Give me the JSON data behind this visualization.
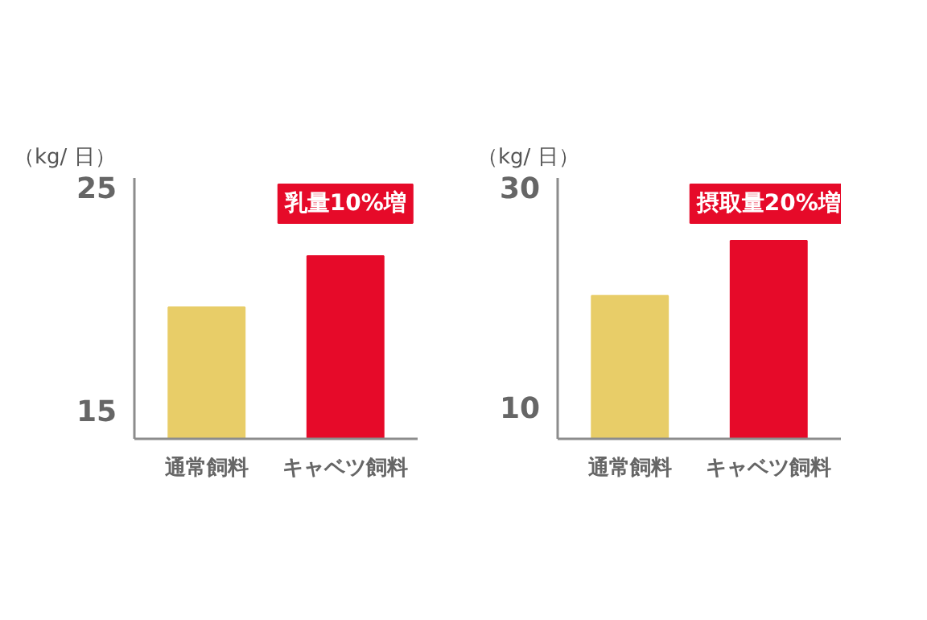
{
  "chart_data": [
    {
      "type": "bar",
      "ylabel": "（kg/ 日）",
      "categories": [
        "通常飼料",
        "キャベツ飼料"
      ],
      "values": [
        19.6,
        21.9
      ],
      "colors": [
        "#e8cd68",
        "#e60a29"
      ],
      "ylim": [
        13.7,
        25.4
      ],
      "yticks": [
        15,
        25
      ],
      "grid": false,
      "annotations": [
        "乳量10%増"
      ]
    },
    {
      "type": "bar",
      "ylabel": "（kg/ 日）",
      "categories": [
        "通常飼料",
        "キャベツ飼料"
      ],
      "values": [
        20.1,
        25.1
      ],
      "colors": [
        "#e8cd68",
        "#e60a29"
      ],
      "ylim": [
        7.1,
        30.8
      ],
      "yticks": [
        30,
        10
      ],
      "grid": false,
      "annotations": [
        "摂取量20%増"
      ]
    }
  ]
}
